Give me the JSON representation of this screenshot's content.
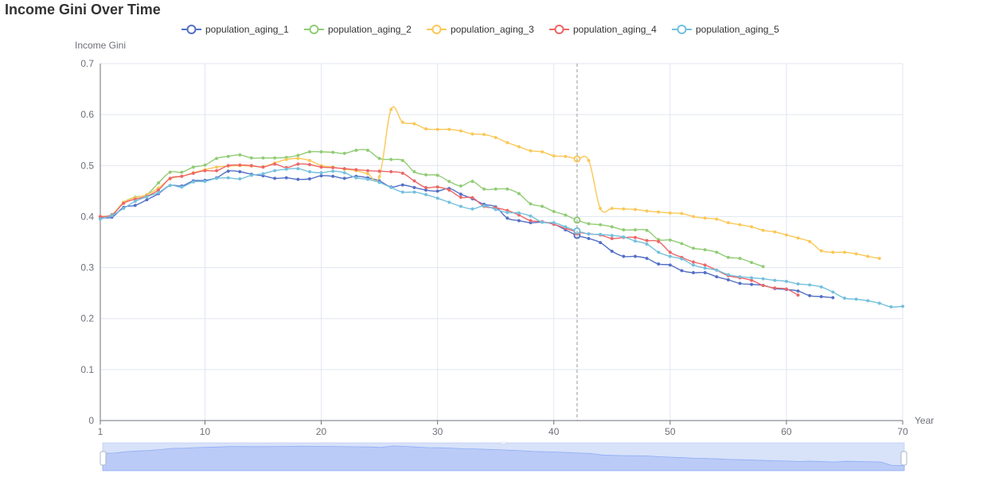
{
  "title": "Income Gini Over Time",
  "chart_data": {
    "type": "line",
    "title": "Income Gini Over Time",
    "xlabel": "Year",
    "ylabel": "Income Gini",
    "xlim": [
      1,
      70
    ],
    "ylim": [
      0,
      0.7
    ],
    "x_ticks": [
      1,
      10,
      20,
      30,
      40,
      50,
      60,
      70
    ],
    "y_ticks": [
      0,
      0.1,
      0.2,
      0.3,
      0.4,
      0.5,
      0.6,
      0.7
    ],
    "grid": true,
    "legend_position": "top-center",
    "tooltip_year": 42,
    "series": [
      {
        "name": "population_aging_1",
        "color": "#5470c6",
        "points": [
          [
            1,
            0.398
          ],
          [
            2,
            0.399
          ],
          [
            3,
            0.418
          ],
          [
            4,
            0.422
          ],
          [
            5,
            0.433
          ],
          [
            6,
            0.445
          ],
          [
            7,
            0.461
          ],
          [
            8,
            0.46
          ],
          [
            9,
            0.47
          ],
          [
            10,
            0.471
          ],
          [
            11,
            0.476
          ],
          [
            12,
            0.489
          ],
          [
            13,
            0.488
          ],
          [
            14,
            0.483
          ],
          [
            15,
            0.48
          ],
          [
            16,
            0.475
          ],
          [
            17,
            0.476
          ],
          [
            18,
            0.473
          ],
          [
            19,
            0.474
          ],
          [
            20,
            0.48
          ],
          [
            21,
            0.479
          ],
          [
            22,
            0.475
          ],
          [
            23,
            0.479
          ],
          [
            24,
            0.476
          ],
          [
            25,
            0.47
          ],
          [
            26,
            0.458
          ],
          [
            27,
            0.462
          ],
          [
            28,
            0.457
          ],
          [
            29,
            0.452
          ],
          [
            30,
            0.45
          ],
          [
            31,
            0.455
          ],
          [
            32,
            0.444
          ],
          [
            33,
            0.435
          ],
          [
            34,
            0.424
          ],
          [
            35,
            0.419
          ],
          [
            36,
            0.397
          ],
          [
            37,
            0.392
          ],
          [
            38,
            0.388
          ],
          [
            39,
            0.389
          ],
          [
            40,
            0.385
          ],
          [
            41,
            0.374
          ],
          [
            42,
            0.363
          ],
          [
            43,
            0.357
          ],
          [
            44,
            0.349
          ],
          [
            45,
            0.332
          ],
          [
            46,
            0.322
          ],
          [
            47,
            0.322
          ],
          [
            48,
            0.318
          ],
          [
            49,
            0.307
          ],
          [
            50,
            0.305
          ],
          [
            51,
            0.294
          ],
          [
            52,
            0.29
          ],
          [
            53,
            0.29
          ],
          [
            54,
            0.282
          ],
          [
            55,
            0.276
          ],
          [
            56,
            0.269
          ],
          [
            57,
            0.267
          ],
          [
            58,
            0.265
          ],
          [
            59,
            0.259
          ],
          [
            60,
            0.257
          ],
          [
            61,
            0.254
          ],
          [
            62,
            0.245
          ],
          [
            63,
            0.243
          ],
          [
            64,
            0.241
          ]
        ]
      },
      {
        "name": "population_aging_2",
        "color": "#91cc75",
        "points": [
          [
            1,
            0.4
          ],
          [
            2,
            0.404
          ],
          [
            3,
            0.428
          ],
          [
            4,
            0.438
          ],
          [
            5,
            0.443
          ],
          [
            6,
            0.466
          ],
          [
            7,
            0.487
          ],
          [
            8,
            0.487
          ],
          [
            9,
            0.497
          ],
          [
            10,
            0.501
          ],
          [
            11,
            0.514
          ],
          [
            12,
            0.518
          ],
          [
            13,
            0.521
          ],
          [
            14,
            0.515
          ],
          [
            15,
            0.515
          ],
          [
            16,
            0.515
          ],
          [
            17,
            0.516
          ],
          [
            18,
            0.52
          ],
          [
            19,
            0.527
          ],
          [
            20,
            0.527
          ],
          [
            21,
            0.526
          ],
          [
            22,
            0.524
          ],
          [
            23,
            0.53
          ],
          [
            24,
            0.53
          ],
          [
            25,
            0.514
          ],
          [
            26,
            0.512
          ],
          [
            27,
            0.51
          ],
          [
            28,
            0.488
          ],
          [
            29,
            0.482
          ],
          [
            30,
            0.481
          ],
          [
            31,
            0.469
          ],
          [
            32,
            0.46
          ],
          [
            33,
            0.469
          ],
          [
            34,
            0.454
          ],
          [
            35,
            0.454
          ],
          [
            36,
            0.454
          ],
          [
            37,
            0.445
          ],
          [
            38,
            0.425
          ],
          [
            39,
            0.42
          ],
          [
            40,
            0.41
          ],
          [
            41,
            0.403
          ],
          [
            42,
            0.393
          ],
          [
            43,
            0.386
          ],
          [
            44,
            0.384
          ],
          [
            45,
            0.38
          ],
          [
            46,
            0.374
          ],
          [
            47,
            0.374
          ],
          [
            48,
            0.373
          ],
          [
            49,
            0.355
          ],
          [
            50,
            0.354
          ],
          [
            51,
            0.347
          ],
          [
            52,
            0.338
          ],
          [
            53,
            0.335
          ],
          [
            54,
            0.33
          ],
          [
            55,
            0.32
          ],
          [
            56,
            0.318
          ],
          [
            57,
            0.31
          ],
          [
            58,
            0.302
          ]
        ]
      },
      {
        "name": "population_aging_3",
        "color": "#fac858",
        "points": [
          [
            1,
            0.4
          ],
          [
            2,
            0.403
          ],
          [
            3,
            0.428
          ],
          [
            4,
            0.437
          ],
          [
            5,
            0.443
          ],
          [
            6,
            0.456
          ],
          [
            7,
            0.474
          ],
          [
            8,
            0.479
          ],
          [
            9,
            0.486
          ],
          [
            10,
            0.492
          ],
          [
            11,
            0.497
          ],
          [
            12,
            0.499
          ],
          [
            13,
            0.5
          ],
          [
            14,
            0.499
          ],
          [
            15,
            0.498
          ],
          [
            16,
            0.505
          ],
          [
            17,
            0.512
          ],
          [
            18,
            0.514
          ],
          [
            19,
            0.51
          ],
          [
            20,
            0.5
          ],
          [
            21,
            0.497
          ],
          [
            22,
            0.493
          ],
          [
            23,
            0.49
          ],
          [
            24,
            0.484
          ],
          [
            25,
            0.478
          ],
          [
            26,
            0.61
          ],
          [
            27,
            0.585
          ],
          [
            28,
            0.582
          ],
          [
            29,
            0.572
          ],
          [
            30,
            0.571
          ],
          [
            31,
            0.571
          ],
          [
            32,
            0.568
          ],
          [
            33,
            0.562
          ],
          [
            34,
            0.561
          ],
          [
            35,
            0.555
          ],
          [
            36,
            0.545
          ],
          [
            37,
            0.537
          ],
          [
            38,
            0.529
          ],
          [
            39,
            0.527
          ],
          [
            40,
            0.519
          ],
          [
            41,
            0.518
          ],
          [
            42,
            0.513
          ],
          [
            43,
            0.51
          ],
          [
            44,
            0.416
          ],
          [
            45,
            0.416
          ],
          [
            46,
            0.415
          ],
          [
            47,
            0.414
          ],
          [
            48,
            0.411
          ],
          [
            49,
            0.409
          ],
          [
            50,
            0.407
          ],
          [
            51,
            0.406
          ],
          [
            52,
            0.4
          ],
          [
            53,
            0.397
          ],
          [
            54,
            0.395
          ],
          [
            55,
            0.388
          ],
          [
            56,
            0.384
          ],
          [
            57,
            0.38
          ],
          [
            58,
            0.373
          ],
          [
            59,
            0.37
          ],
          [
            60,
            0.364
          ],
          [
            61,
            0.358
          ],
          [
            62,
            0.351
          ],
          [
            63,
            0.333
          ],
          [
            64,
            0.33
          ],
          [
            65,
            0.33
          ],
          [
            66,
            0.327
          ],
          [
            67,
            0.322
          ],
          [
            68,
            0.318
          ]
        ]
      },
      {
        "name": "population_aging_4",
        "color": "#ee6666",
        "points": [
          [
            1,
            0.4
          ],
          [
            2,
            0.403
          ],
          [
            3,
            0.426
          ],
          [
            4,
            0.434
          ],
          [
            5,
            0.44
          ],
          [
            6,
            0.452
          ],
          [
            7,
            0.475
          ],
          [
            8,
            0.479
          ],
          [
            9,
            0.485
          ],
          [
            10,
            0.49
          ],
          [
            11,
            0.49
          ],
          [
            12,
            0.5
          ],
          [
            13,
            0.501
          ],
          [
            14,
            0.5
          ],
          [
            15,
            0.497
          ],
          [
            16,
            0.503
          ],
          [
            17,
            0.496
          ],
          [
            18,
            0.503
          ],
          [
            19,
            0.502
          ],
          [
            20,
            0.497
          ],
          [
            21,
            0.496
          ],
          [
            22,
            0.494
          ],
          [
            23,
            0.492
          ],
          [
            24,
            0.49
          ],
          [
            25,
            0.489
          ],
          [
            26,
            0.488
          ],
          [
            27,
            0.485
          ],
          [
            28,
            0.47
          ],
          [
            29,
            0.457
          ],
          [
            30,
            0.458
          ],
          [
            31,
            0.452
          ],
          [
            32,
            0.438
          ],
          [
            33,
            0.437
          ],
          [
            34,
            0.42
          ],
          [
            35,
            0.417
          ],
          [
            36,
            0.412
          ],
          [
            37,
            0.403
          ],
          [
            38,
            0.392
          ],
          [
            39,
            0.39
          ],
          [
            40,
            0.385
          ],
          [
            41,
            0.377
          ],
          [
            42,
            0.37
          ],
          [
            43,
            0.366
          ],
          [
            44,
            0.364
          ],
          [
            45,
            0.357
          ],
          [
            46,
            0.359
          ],
          [
            47,
            0.359
          ],
          [
            48,
            0.353
          ],
          [
            49,
            0.351
          ],
          [
            50,
            0.33
          ],
          [
            51,
            0.32
          ],
          [
            52,
            0.311
          ],
          [
            53,
            0.305
          ],
          [
            54,
            0.295
          ],
          [
            55,
            0.284
          ],
          [
            56,
            0.28
          ],
          [
            57,
            0.275
          ],
          [
            58,
            0.265
          ],
          [
            59,
            0.26
          ],
          [
            60,
            0.258
          ],
          [
            61,
            0.246
          ]
        ]
      },
      {
        "name": "population_aging_5",
        "color": "#73c0de",
        "points": [
          [
            1,
            0.395
          ],
          [
            2,
            0.402
          ],
          [
            3,
            0.416
          ],
          [
            4,
            0.43
          ],
          [
            5,
            0.439
          ],
          [
            6,
            0.447
          ],
          [
            7,
            0.461
          ],
          [
            8,
            0.458
          ],
          [
            9,
            0.468
          ],
          [
            10,
            0.469
          ],
          [
            11,
            0.475
          ],
          [
            12,
            0.476
          ],
          [
            13,
            0.474
          ],
          [
            14,
            0.481
          ],
          [
            15,
            0.484
          ],
          [
            16,
            0.49
          ],
          [
            17,
            0.493
          ],
          [
            18,
            0.494
          ],
          [
            19,
            0.488
          ],
          [
            20,
            0.486
          ],
          [
            21,
            0.489
          ],
          [
            22,
            0.486
          ],
          [
            23,
            0.476
          ],
          [
            24,
            0.473
          ],
          [
            25,
            0.467
          ],
          [
            26,
            0.457
          ],
          [
            27,
            0.448
          ],
          [
            28,
            0.448
          ],
          [
            29,
            0.443
          ],
          [
            30,
            0.436
          ],
          [
            31,
            0.428
          ],
          [
            32,
            0.42
          ],
          [
            33,
            0.415
          ],
          [
            34,
            0.421
          ],
          [
            35,
            0.414
          ],
          [
            36,
            0.408
          ],
          [
            37,
            0.407
          ],
          [
            38,
            0.401
          ],
          [
            39,
            0.389
          ],
          [
            40,
            0.388
          ],
          [
            41,
            0.38
          ],
          [
            42,
            0.372
          ],
          [
            43,
            0.366
          ],
          [
            44,
            0.365
          ],
          [
            45,
            0.363
          ],
          [
            46,
            0.36
          ],
          [
            47,
            0.352
          ],
          [
            48,
            0.346
          ],
          [
            49,
            0.33
          ],
          [
            50,
            0.322
          ],
          [
            51,
            0.317
          ],
          [
            52,
            0.305
          ],
          [
            53,
            0.299
          ],
          [
            54,
            0.295
          ],
          [
            55,
            0.286
          ],
          [
            56,
            0.282
          ],
          [
            57,
            0.28
          ],
          [
            58,
            0.278
          ],
          [
            59,
            0.275
          ],
          [
            60,
            0.273
          ],
          [
            61,
            0.268
          ],
          [
            62,
            0.266
          ],
          [
            63,
            0.262
          ],
          [
            64,
            0.252
          ],
          [
            65,
            0.24
          ],
          [
            66,
            0.238
          ],
          [
            67,
            0.235
          ],
          [
            68,
            0.23
          ],
          [
            69,
            0.223
          ],
          [
            70,
            0.224
          ]
        ]
      }
    ]
  }
}
